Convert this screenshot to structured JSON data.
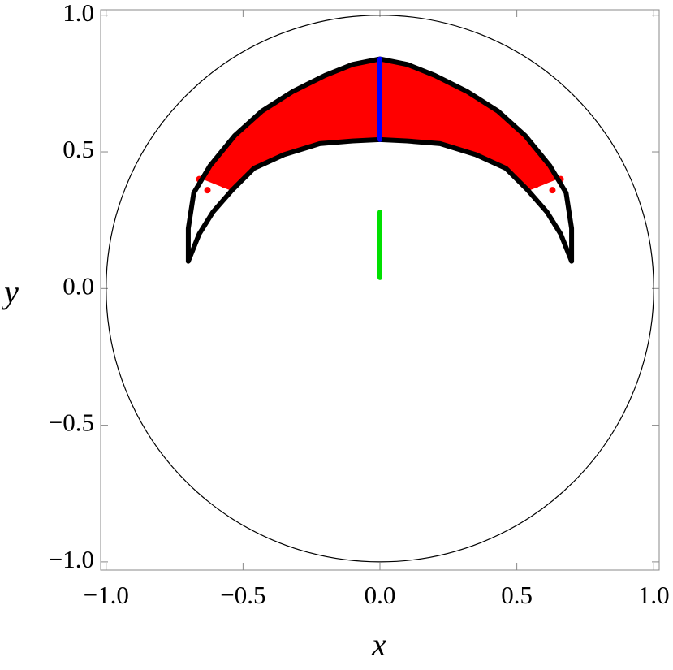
{
  "chart_data": {
    "type": "line",
    "xlabel": "x",
    "ylabel": "y",
    "xlim": [
      -1.02,
      1.02
    ],
    "ylim": [
      -1.03,
      1.02
    ],
    "xticks": [
      {
        "value": -1,
        "label": "−1.0"
      },
      {
        "value": -0.5,
        "label": "−0.5"
      },
      {
        "value": 0,
        "label": "0.0"
      },
      {
        "value": 0.5,
        "label": "0.5"
      },
      {
        "value": 1,
        "label": "1.0"
      }
    ],
    "yticks": [
      {
        "value": -1,
        "label": "−1.0"
      },
      {
        "value": -0.5,
        "label": "−0.5"
      },
      {
        "value": 0,
        "label": "0.0"
      },
      {
        "value": 0.5,
        "label": "0.5"
      },
      {
        "value": 1,
        "label": "1.0"
      }
    ],
    "series": [
      {
        "type": "circle",
        "color": "#000000",
        "center": [
          0,
          0
        ],
        "radius": 1
      },
      {
        "type": "area",
        "color": "#ff0000",
        "x": [
          -0.64,
          -0.62,
          -0.53,
          -0.43,
          -0.32,
          -0.2,
          -0.1,
          0,
          0.1,
          0.2,
          0.32,
          0.43,
          0.53,
          0.62,
          0.64,
          0.54,
          0.46,
          0.35,
          0.22,
          0.1,
          0,
          -0.1,
          -0.22,
          -0.35,
          -0.46,
          -0.54
        ],
        "y": [
          0.4,
          0.45,
          0.56,
          0.65,
          0.72,
          0.78,
          0.82,
          0.84,
          0.82,
          0.78,
          0.72,
          0.65,
          0.56,
          0.45,
          0.4,
          0.36,
          0.44,
          0.49,
          0.53,
          0.54,
          0.545,
          0.54,
          0.53,
          0.49,
          0.44,
          0.36
        ]
      },
      {
        "type": "scatter",
        "color": "#ff0000",
        "x": [
          -0.66,
          -0.63,
          -0.6,
          -0.57,
          0.66,
          0.63,
          0.6,
          0.57
        ],
        "y": [
          0.4,
          0.36,
          0.42,
          0.38,
          0.4,
          0.36,
          0.42,
          0.38
        ]
      },
      {
        "type": "line",
        "color": "#000000",
        "x": [
          -0.7,
          -0.7,
          -0.68,
          -0.62,
          -0.53,
          -0.43,
          -0.32,
          -0.2,
          -0.1,
          0,
          0.1,
          0.2,
          0.32,
          0.43,
          0.53,
          0.62,
          0.68,
          0.7,
          0.7,
          0.66,
          0.61,
          0.54,
          0.46,
          0.35,
          0.22,
          0.1,
          0,
          -0.1,
          -0.22,
          -0.35,
          -0.46,
          -0.54,
          -0.61,
          -0.66,
          -0.7
        ],
        "y": [
          0.1,
          0.22,
          0.35,
          0.45,
          0.56,
          0.65,
          0.72,
          0.78,
          0.82,
          0.84,
          0.82,
          0.78,
          0.72,
          0.65,
          0.56,
          0.45,
          0.35,
          0.22,
          0.1,
          0.2,
          0.28,
          0.36,
          0.44,
          0.49,
          0.53,
          0.54,
          0.545,
          0.54,
          0.53,
          0.49,
          0.44,
          0.36,
          0.28,
          0.2,
          0.1
        ]
      },
      {
        "type": "line",
        "color": "#0000ff",
        "x": [
          0,
          0
        ],
        "y": [
          0.545,
          0.84
        ]
      },
      {
        "type": "line",
        "color": "#00e000",
        "x": [
          0,
          0
        ],
        "y": [
          0.04,
          0.28
        ]
      }
    ]
  }
}
